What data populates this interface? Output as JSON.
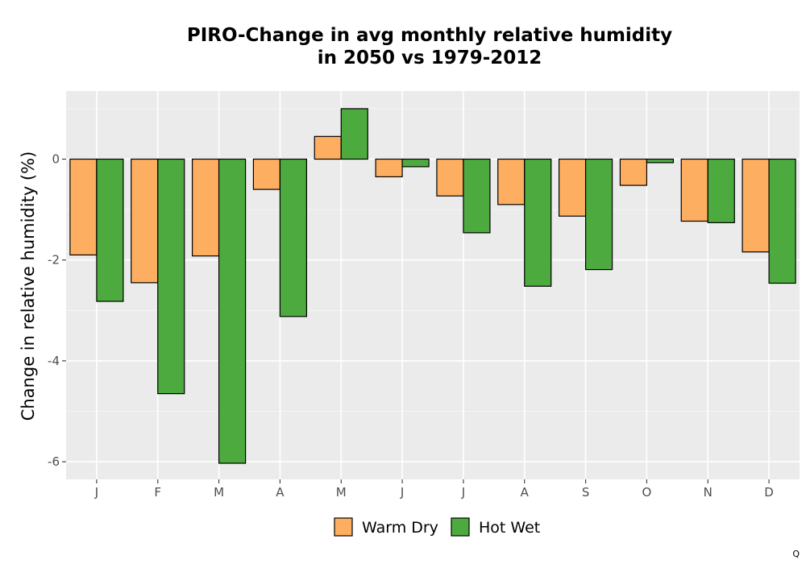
{
  "chart_data": {
    "type": "bar",
    "title_lines": [
      "PIRO-Change in avg monthly relative humidity",
      "in 2050 vs 1979-2012"
    ],
    "xlabel": "",
    "ylabel": "Change in relative humidity (%)",
    "categories": [
      "J",
      "F",
      "M",
      "A",
      "M",
      "J",
      "J",
      "A",
      "S",
      "O",
      "N",
      "D"
    ],
    "series": [
      {
        "name": "Warm Dry",
        "color": "#fdae61",
        "values": [
          -1.9,
          -2.45,
          -1.92,
          -0.6,
          0.45,
          -0.35,
          -0.73,
          -0.9,
          -1.13,
          -0.52,
          -1.23,
          -1.84
        ]
      },
      {
        "name": "Hot Wet",
        "color": "#4daa3f",
        "values": [
          -2.82,
          -4.65,
          -6.03,
          -3.12,
          1.0,
          -0.15,
          -1.46,
          -2.52,
          -2.19,
          -0.07,
          -1.26,
          -2.46
        ]
      }
    ],
    "ylim": [
      -6.35,
      1.35
    ],
    "yticks": [
      0,
      -2,
      -4,
      -6
    ],
    "ytick_labels": [
      "0",
      "-2",
      "-4",
      "-6"
    ],
    "grid": true,
    "legend_position": "bottom"
  },
  "footer_mark": "Q"
}
